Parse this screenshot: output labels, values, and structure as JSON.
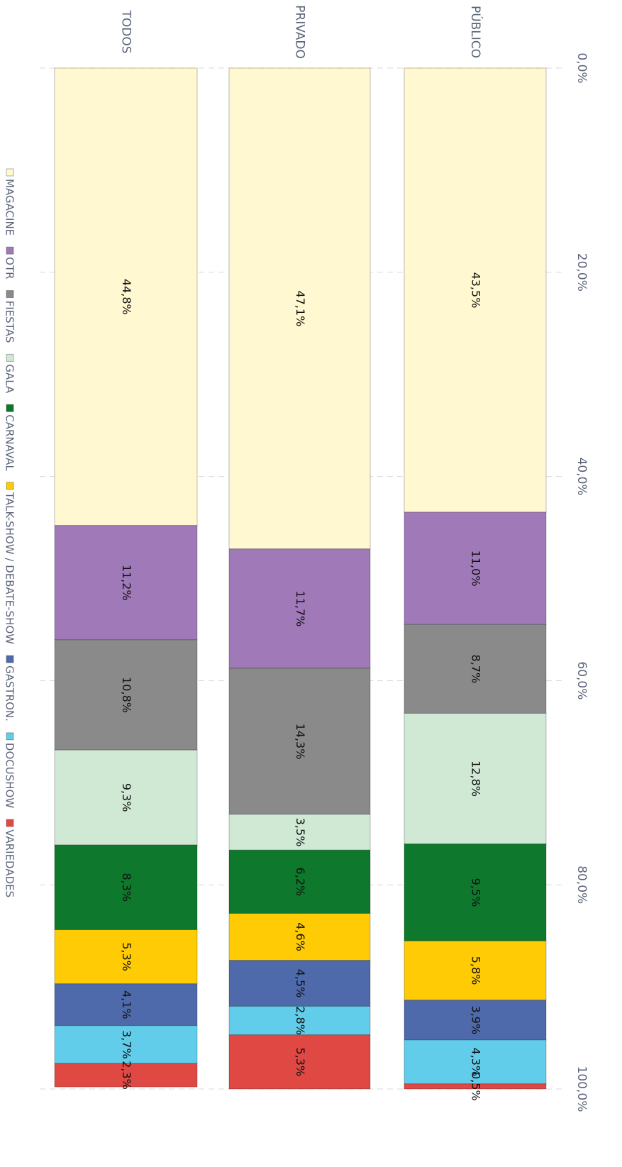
{
  "chart_data": {
    "type": "stacked-bar-100",
    "categories": [
      "PÚBLICO",
      "PRIVADO",
      "TODOS"
    ],
    "series": [
      {
        "name": "MAGACINE",
        "color": "#fff8d0",
        "values": [
          43.5,
          47.1,
          44.8
        ],
        "value_labels": [
          "43,5%",
          "47,1%",
          "44,8%"
        ]
      },
      {
        "name": "OTR",
        "color": "#a07ab8",
        "values": [
          11.0,
          11.7,
          11.2
        ],
        "value_labels": [
          "11,0%",
          "11,7%",
          "11,2%"
        ]
      },
      {
        "name": "FIESTAS",
        "color": "#8a8a8a",
        "values": [
          8.7,
          14.3,
          10.8
        ],
        "value_labels": [
          "8,7%",
          "14,3%",
          "10,8%"
        ]
      },
      {
        "name": "GALA",
        "color": "#d0e9d5",
        "values": [
          12.8,
          3.5,
          9.3
        ],
        "value_labels": [
          "12,8%",
          "3,5%",
          "9,3%"
        ]
      },
      {
        "name": "CARNAVAL",
        "color": "#0e782c",
        "values": [
          9.5,
          6.2,
          8.3
        ],
        "value_labels": [
          "9,5%",
          "6,2%",
          "8,3%"
        ]
      },
      {
        "name": "TALK-SHOW / DEBATE-SHOW",
        "color": "#ffcb05",
        "values": [
          5.8,
          4.6,
          5.3
        ],
        "value_labels": [
          "5,8%",
          "4,6%",
          "5,3%"
        ]
      },
      {
        "name": "GASTRON.",
        "color": "#4f6aab",
        "values": [
          3.9,
          4.5,
          4.1
        ],
        "value_labels": [
          "3,9%",
          "4,5%",
          "4,1%"
        ]
      },
      {
        "name": "DOCUSHOW",
        "color": "#62cdea",
        "values": [
          4.3,
          2.8,
          3.7
        ],
        "value_labels": [
          "4,3%",
          "2,8%",
          "3,7%"
        ]
      },
      {
        "name": "VARIEDADES",
        "color": "#e04844",
        "values": [
          0.5,
          5.3,
          2.3
        ],
        "value_labels": [
          "0,5%",
          "5,3%",
          "2,3%"
        ]
      }
    ],
    "xlim": [
      0,
      100
    ],
    "xticks": [
      {
        "value": 0,
        "label": "0,0%"
      },
      {
        "value": 20,
        "label": "20,0%"
      },
      {
        "value": 40,
        "label": "40,0%"
      },
      {
        "value": 60,
        "label": "60,0%"
      },
      {
        "value": 80,
        "label": "80,0%"
      },
      {
        "value": 100,
        "label": "100,0%"
      }
    ],
    "grid": true
  }
}
